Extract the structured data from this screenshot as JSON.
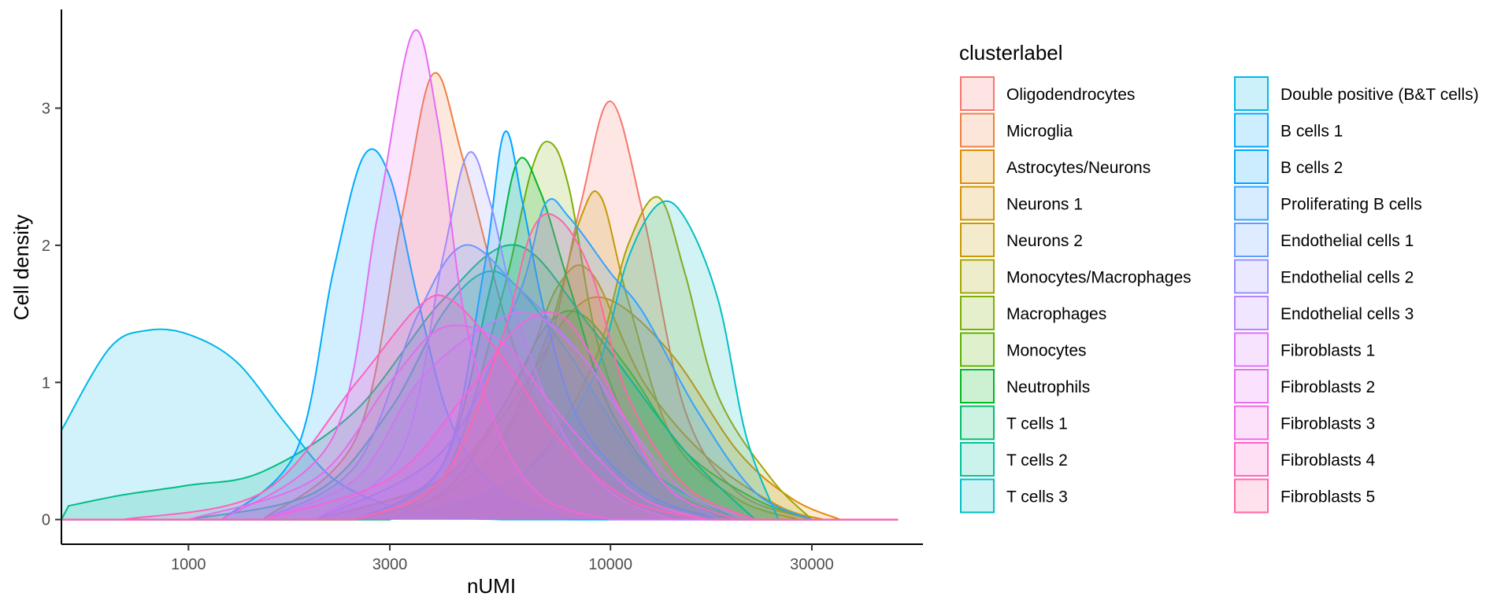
{
  "chart_data": {
    "type": "area",
    "title": "",
    "xlabel": "nUMI",
    "ylabel": "Cell density",
    "x_scale": "log10",
    "xlim": [
      500,
      55000
    ],
    "ylim": [
      -0.18,
      3.72
    ],
    "x_ticks": [
      1000,
      3000,
      10000,
      30000
    ],
    "x_tick_labels": [
      "1000",
      "3000",
      "10000",
      "30000"
    ],
    "y_ticks": [
      0,
      1,
      2,
      3
    ],
    "y_tick_labels": [
      "0",
      "1",
      "2",
      "3"
    ],
    "vline_x": 500,
    "grid": false,
    "legend": {
      "title": "clusterlabel",
      "placement": "right",
      "columns": 2
    },
    "series": [
      {
        "name": "Oligodendrocytes",
        "color": "#F8766D",
        "x": [
          3000,
          5000,
          7000,
          8500,
          10000,
          12000,
          15000,
          20000,
          30000
        ],
        "y": [
          0,
          0.4,
          1.2,
          2.3,
          3.05,
          2.2,
          0.8,
          0.2,
          0
        ]
      },
      {
        "name": "Microglia",
        "color": "#EE8042",
        "x": [
          1500,
          2500,
          3200,
          3800,
          4500,
          6000,
          8000,
          12000,
          20000
        ],
        "y": [
          0,
          0.6,
          2.2,
          3.25,
          2.6,
          1.2,
          0.5,
          0.15,
          0
        ]
      },
      {
        "name": "Astrocytes/Neurons",
        "color": "#E38900",
        "x": [
          2000,
          4000,
          6000,
          8000,
          10000,
          14000,
          20000,
          27000,
          35000
        ],
        "y": [
          0,
          0.3,
          0.9,
          1.5,
          1.6,
          1.2,
          0.5,
          0.15,
          0
        ]
      },
      {
        "name": "Neurons 1",
        "color": "#D39200",
        "x": [
          2000,
          4000,
          6000,
          7500,
          9000,
          12000,
          17000,
          25000,
          32000
        ],
        "y": [
          0,
          0.3,
          1.0,
          1.7,
          1.8,
          1.0,
          0.45,
          0.1,
          0
        ]
      },
      {
        "name": "Neurons 2",
        "color": "#C49A00",
        "x": [
          3000,
          5000,
          7000,
          8500,
          9500,
          11000,
          14000,
          20000,
          28000
        ],
        "y": [
          0,
          0.4,
          1.3,
          2.2,
          2.35,
          1.6,
          0.6,
          0.15,
          0
        ]
      },
      {
        "name": "Monocytes/Macrophages",
        "color": "#A3A500",
        "x": [
          3000,
          6000,
          9000,
          11000,
          13000,
          15000,
          18000,
          24000,
          30000
        ],
        "y": [
          0,
          0.3,
          1.1,
          2.0,
          2.35,
          1.8,
          0.9,
          0.3,
          0
        ]
      },
      {
        "name": "Macrophages",
        "color": "#7CAE00",
        "x": [
          2500,
          4000,
          5500,
          6500,
          7200,
          8000,
          9500,
          13000,
          20000
        ],
        "y": [
          0,
          0.3,
          1.6,
          2.55,
          2.75,
          2.4,
          1.2,
          0.3,
          0
        ]
      },
      {
        "name": "Monocytes",
        "color": "#5BB300",
        "x": [
          2500,
          4000,
          5500,
          7000,
          8500,
          11000,
          15000,
          22000,
          30000
        ],
        "y": [
          0,
          0.2,
          0.8,
          1.4,
          1.5,
          1.1,
          0.5,
          0.15,
          0
        ]
      },
      {
        "name": "Neutrophils",
        "color": "#00B81F",
        "x": [
          2500,
          4000,
          5200,
          6000,
          6800,
          8000,
          10000,
          14000,
          20000
        ],
        "y": [
          0,
          0.4,
          1.7,
          2.6,
          2.4,
          1.7,
          0.8,
          0.2,
          0
        ]
      },
      {
        "name": "T cells 1",
        "color": "#00BE6C",
        "x": [
          520,
          700,
          1000,
          1500,
          2500,
          4000,
          6000,
          9000,
          15000,
          22000
        ],
        "y": [
          0.1,
          0.18,
          0.25,
          0.35,
          0.8,
          1.6,
          2.0,
          1.4,
          0.5,
          0
        ]
      },
      {
        "name": "T cells 2",
        "color": "#00C19A",
        "x": [
          1000,
          2000,
          3000,
          4000,
          5000,
          6000,
          8000,
          12000,
          20000
        ],
        "y": [
          0,
          0.2,
          0.8,
          1.5,
          1.8,
          1.7,
          1.2,
          0.4,
          0
        ]
      },
      {
        "name": "T cells 3",
        "color": "#00BFC4",
        "x": [
          3000,
          6000,
          9000,
          11000,
          13000,
          15000,
          18000,
          21000,
          25000
        ],
        "y": [
          0,
          0.3,
          1.0,
          1.9,
          2.3,
          2.2,
          1.6,
          0.6,
          0
        ]
      },
      {
        "name": "Double positive (B&T cells)",
        "color": "#00B8E7",
        "x": [
          500,
          650,
          800,
          1000,
          1300,
          1700,
          2200,
          3000,
          4000,
          5500
        ],
        "y": [
          0.65,
          1.25,
          1.38,
          1.35,
          1.15,
          0.7,
          0.3,
          0.1,
          0.02,
          0
        ]
      },
      {
        "name": "B cells 1",
        "color": "#00A9FF",
        "x": [
          1200,
          1800,
          2200,
          2600,
          3000,
          3500,
          4200,
          5500,
          8000
        ],
        "y": [
          0,
          0.5,
          1.8,
          2.65,
          2.5,
          1.6,
          0.7,
          0.2,
          0
        ]
      },
      {
        "name": "B cells 2",
        "color": "#00A5FF",
        "x": [
          2500,
          4000,
          5000,
          5600,
          6200,
          7000,
          8500,
          12000,
          18000
        ],
        "y": [
          0,
          0.4,
          1.8,
          2.82,
          2.3,
          1.5,
          0.7,
          0.2,
          0
        ]
      },
      {
        "name": "Proliferating B cells",
        "color": "#35A2FF",
        "x": [
          2000,
          4000,
          6000,
          7000,
          8000,
          10000,
          12000,
          16000,
          22000,
          30000
        ],
        "y": [
          0,
          0.5,
          1.6,
          2.3,
          2.2,
          1.8,
          1.5,
          0.8,
          0.2,
          0
        ]
      },
      {
        "name": "Endothelial cells 1",
        "color": "#619CFF",
        "x": [
          1500,
          2500,
          3500,
          4500,
          6000,
          8000,
          10000,
          13000,
          18000
        ],
        "y": [
          0,
          0.4,
          1.5,
          2.0,
          1.7,
          1.3,
          0.9,
          0.3,
          0
        ]
      },
      {
        "name": "Endothelial cells 2",
        "color": "#9590FF",
        "x": [
          2000,
          3200,
          4000,
          4600,
          5200,
          6000,
          7500,
          10000,
          14000
        ],
        "y": [
          0,
          0.5,
          1.9,
          2.67,
          2.3,
          1.5,
          0.7,
          0.2,
          0
        ]
      },
      {
        "name": "Endothelial cells 3",
        "color": "#B983FF",
        "x": [
          1500,
          2500,
          3500,
          5000,
          6500,
          8500,
          11000,
          15000,
          22000
        ],
        "y": [
          0,
          0.3,
          1.0,
          1.4,
          1.5,
          1.2,
          0.7,
          0.2,
          0
        ]
      },
      {
        "name": "Fibroblasts 1",
        "color": "#DB72FB",
        "x": [
          1000,
          2000,
          3000,
          4000,
          5500,
          7000,
          9000,
          12000,
          17000
        ],
        "y": [
          0,
          0.3,
          1.0,
          1.4,
          1.3,
          0.9,
          0.5,
          0.15,
          0
        ]
      },
      {
        "name": "Fibroblasts 2",
        "color": "#E76BF3",
        "x": [
          1200,
          2200,
          2800,
          3400,
          3900,
          4500,
          5500,
          7000,
          10000
        ],
        "y": [
          0,
          0.6,
          2.2,
          3.55,
          2.9,
          1.5,
          0.6,
          0.15,
          0
        ]
      },
      {
        "name": "Fibroblasts 3",
        "color": "#F564E3",
        "x": [
          1500,
          3000,
          4500,
          6000,
          7500,
          9000,
          11000,
          14000,
          20000
        ],
        "y": [
          0,
          0.3,
          0.9,
          1.4,
          1.5,
          1.2,
          0.7,
          0.2,
          0
        ]
      },
      {
        "name": "Fibroblasts 4",
        "color": "#FF61C3",
        "x": [
          700,
          1500,
          2500,
          3500,
          4200,
          5500,
          7500,
          11000,
          17000
        ],
        "y": [
          0,
          0.2,
          1.0,
          1.55,
          1.6,
          1.2,
          0.6,
          0.15,
          0
        ]
      },
      {
        "name": "Fibroblasts 5",
        "color": "#FF67A4",
        "x": [
          2500,
          4000,
          5500,
          6500,
          7500,
          9000,
          11000,
          15000,
          22000
        ],
        "y": [
          0,
          0.3,
          1.3,
          2.1,
          2.2,
          1.8,
          0.9,
          0.25,
          0
        ]
      }
    ]
  }
}
